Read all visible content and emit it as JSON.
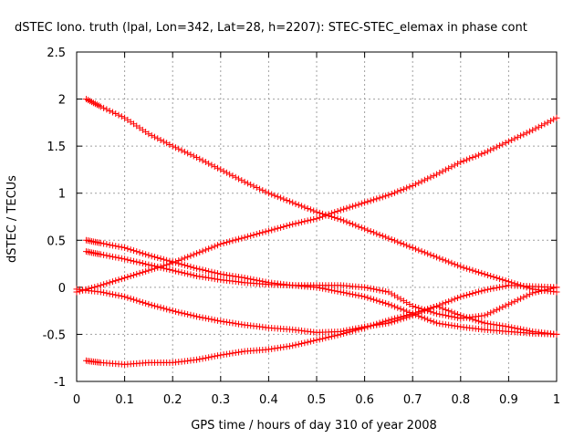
{
  "chart_data": {
    "type": "scatter",
    "title": "dSTEC Iono. truth (lpal, Lon=342, Lat=28, h=2207): STEC-STEC_elemax in phase cont",
    "xlabel": "GPS time / hours of day 310 of year 2008",
    "ylabel": "dSTEC  / TECUs",
    "xlim": [
      0,
      1
    ],
    "ylim": [
      -1,
      2.5
    ],
    "xticks": [
      "0",
      "0.1",
      "0.2",
      "0.3",
      "0.4",
      "0.5",
      "0.6",
      "0.7",
      "0.8",
      "0.9",
      "1"
    ],
    "yticks": [
      "-1",
      "-0.5",
      "0",
      "0.5",
      "1",
      "1.5",
      "2",
      "2.5"
    ],
    "grid": true,
    "marker": "plus",
    "marker_color": "#ff0000",
    "series": [
      {
        "x": [
          0.02,
          0.05,
          0.1,
          0.15,
          0.2,
          0.25,
          0.3,
          0.35,
          0.4,
          0.45,
          0.5,
          0.55,
          0.6,
          0.65,
          0.7,
          0.75,
          0.8,
          0.85,
          0.9,
          0.95,
          1.0
        ],
        "y": [
          2.0,
          1.92,
          1.8,
          1.63,
          1.5,
          1.38,
          1.25,
          1.12,
          1.0,
          0.9,
          0.8,
          0.72,
          0.62,
          0.52,
          0.42,
          0.32,
          0.22,
          0.14,
          0.06,
          -0.02,
          -0.05
        ]
      },
      {
        "x": [
          0.0,
          0.05,
          0.1,
          0.15,
          0.2,
          0.25,
          0.3,
          0.35,
          0.4,
          0.45,
          0.5,
          0.55,
          0.6,
          0.65,
          0.7,
          0.75,
          0.8,
          0.85,
          0.9,
          0.95,
          1.0
        ],
        "y": [
          -0.05,
          0.02,
          0.1,
          0.18,
          0.26,
          0.36,
          0.46,
          0.53,
          0.6,
          0.67,
          0.73,
          0.82,
          0.9,
          0.98,
          1.08,
          1.2,
          1.33,
          1.43,
          1.55,
          1.67,
          1.8
        ]
      },
      {
        "x": [
          0.02,
          0.05,
          0.1,
          0.15,
          0.2,
          0.25,
          0.3,
          0.35,
          0.4,
          0.45,
          0.5,
          0.55,
          0.6,
          0.65,
          0.7,
          0.75,
          0.8,
          0.85,
          0.9,
          0.95,
          1.0
        ],
        "y": [
          0.5,
          0.47,
          0.42,
          0.34,
          0.27,
          0.2,
          0.14,
          0.1,
          0.05,
          0.02,
          0.0,
          -0.05,
          -0.1,
          -0.18,
          -0.28,
          -0.38,
          -0.42,
          -0.45,
          -0.47,
          -0.49,
          -0.5
        ]
      },
      {
        "x": [
          0.02,
          0.05,
          0.1,
          0.15,
          0.2,
          0.25,
          0.3,
          0.35,
          0.4,
          0.45,
          0.5,
          0.55,
          0.6,
          0.65,
          0.7,
          0.75,
          0.8,
          0.85,
          0.9,
          0.95,
          1.0
        ],
        "y": [
          0.38,
          0.35,
          0.3,
          0.24,
          0.18,
          0.12,
          0.08,
          0.05,
          0.03,
          0.02,
          0.02,
          0.02,
          0.0,
          -0.05,
          -0.2,
          -0.28,
          -0.33,
          -0.3,
          -0.18,
          -0.06,
          0.0
        ]
      },
      {
        "x": [
          0.0,
          0.05,
          0.1,
          0.15,
          0.2,
          0.25,
          0.3,
          0.35,
          0.4,
          0.45,
          0.5,
          0.55,
          0.6,
          0.65,
          0.7,
          0.75,
          0.8,
          0.85,
          0.9,
          0.95,
          1.0
        ],
        "y": [
          -0.02,
          -0.05,
          -0.1,
          -0.18,
          -0.25,
          -0.31,
          -0.36,
          -0.4,
          -0.43,
          -0.45,
          -0.48,
          -0.47,
          -0.42,
          -0.38,
          -0.3,
          -0.2,
          -0.1,
          -0.03,
          0.02,
          0.01,
          0.0
        ]
      },
      {
        "x": [
          0.02,
          0.05,
          0.1,
          0.15,
          0.2,
          0.25,
          0.3,
          0.35,
          0.4,
          0.45,
          0.5,
          0.55,
          0.6,
          0.65,
          0.7,
          0.75,
          0.8,
          0.85,
          0.9,
          0.95,
          1.0
        ],
        "y": [
          -0.78,
          -0.8,
          -0.82,
          -0.8,
          -0.8,
          -0.77,
          -0.72,
          -0.68,
          -0.66,
          -0.62,
          -0.56,
          -0.5,
          -0.43,
          -0.35,
          -0.28,
          -0.2,
          -0.3,
          -0.38,
          -0.42,
          -0.47,
          -0.5
        ]
      }
    ]
  }
}
